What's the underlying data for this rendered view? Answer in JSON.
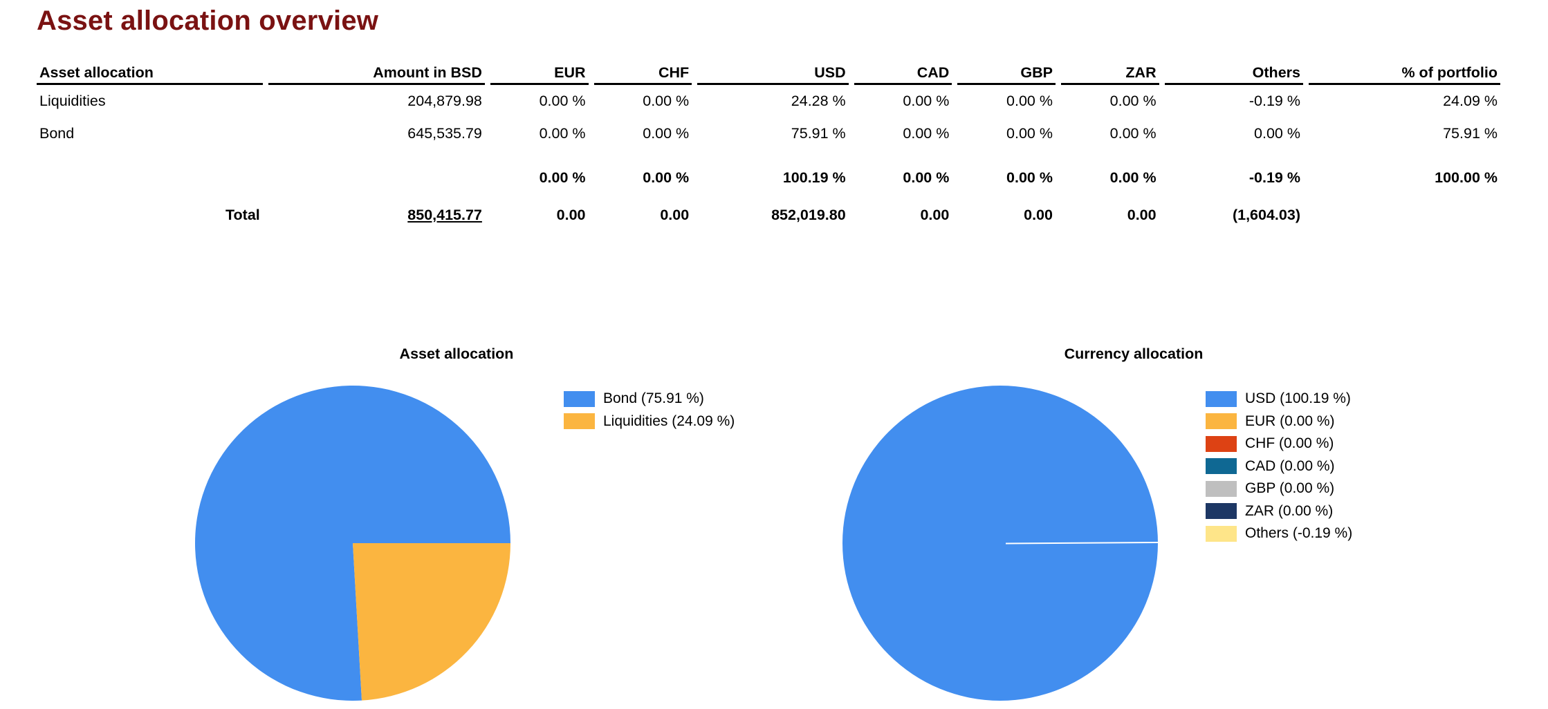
{
  "page": {
    "title": "Asset allocation overview"
  },
  "table": {
    "headers": [
      "Asset allocation",
      "Amount in BSD",
      "EUR",
      "CHF",
      "USD",
      "CAD",
      "GBP",
      "ZAR",
      "Others",
      "% of portfolio"
    ],
    "rows": [
      [
        "Liquidities",
        "204,879.98",
        "0.00 %",
        "0.00 %",
        "24.28 %",
        "0.00 %",
        "0.00 %",
        "0.00 %",
        "-0.19 %",
        "24.09 %"
      ],
      [
        "Bond",
        "645,535.79",
        "0.00 %",
        "0.00 %",
        "75.91 %",
        "0.00 %",
        "0.00 %",
        "0.00 %",
        "0.00 %",
        "75.91 %"
      ]
    ],
    "percent_totals": [
      "",
      "",
      "0.00 %",
      "0.00 %",
      "100.19 %",
      "0.00 %",
      "0.00 %",
      "0.00 %",
      "-0.19 %",
      "100.00 %"
    ],
    "totals": [
      "Total",
      "850,415.77",
      "0.00",
      "0.00",
      "852,019.80",
      "0.00",
      "0.00",
      "0.00",
      "(1,604.03)",
      ""
    ]
  },
  "chart_data": [
    {
      "type": "pie",
      "title": "Asset allocation",
      "legend_position": "right",
      "slices": [
        {
          "label": "Bond (75.91 %)",
          "value": 75.91,
          "color": "#428eef"
        },
        {
          "label": "Liquidities (24.09 %)",
          "value": 24.09,
          "color": "#fbb540"
        }
      ]
    },
    {
      "type": "pie",
      "title": "Currency allocation",
      "legend_position": "right",
      "slices": [
        {
          "label": "USD (100.19 %)",
          "value": 100.19,
          "color": "#428eef"
        },
        {
          "label": "EUR (0.00 %)",
          "value": 0.0,
          "color": "#fbb540"
        },
        {
          "label": "CHF (0.00 %)",
          "value": 0.0,
          "color": "#dd4214"
        },
        {
          "label": "CAD (0.00 %)",
          "value": 0.0,
          "color": "#0f6893"
        },
        {
          "label": "GBP (0.00 %)",
          "value": 0.0,
          "color": "#bfbfbf"
        },
        {
          "label": "ZAR (0.00 %)",
          "value": 0.0,
          "color": "#1d3764"
        },
        {
          "label": "Others (-0.19 %)",
          "value": -0.19,
          "color": "#fee589"
        }
      ]
    }
  ]
}
